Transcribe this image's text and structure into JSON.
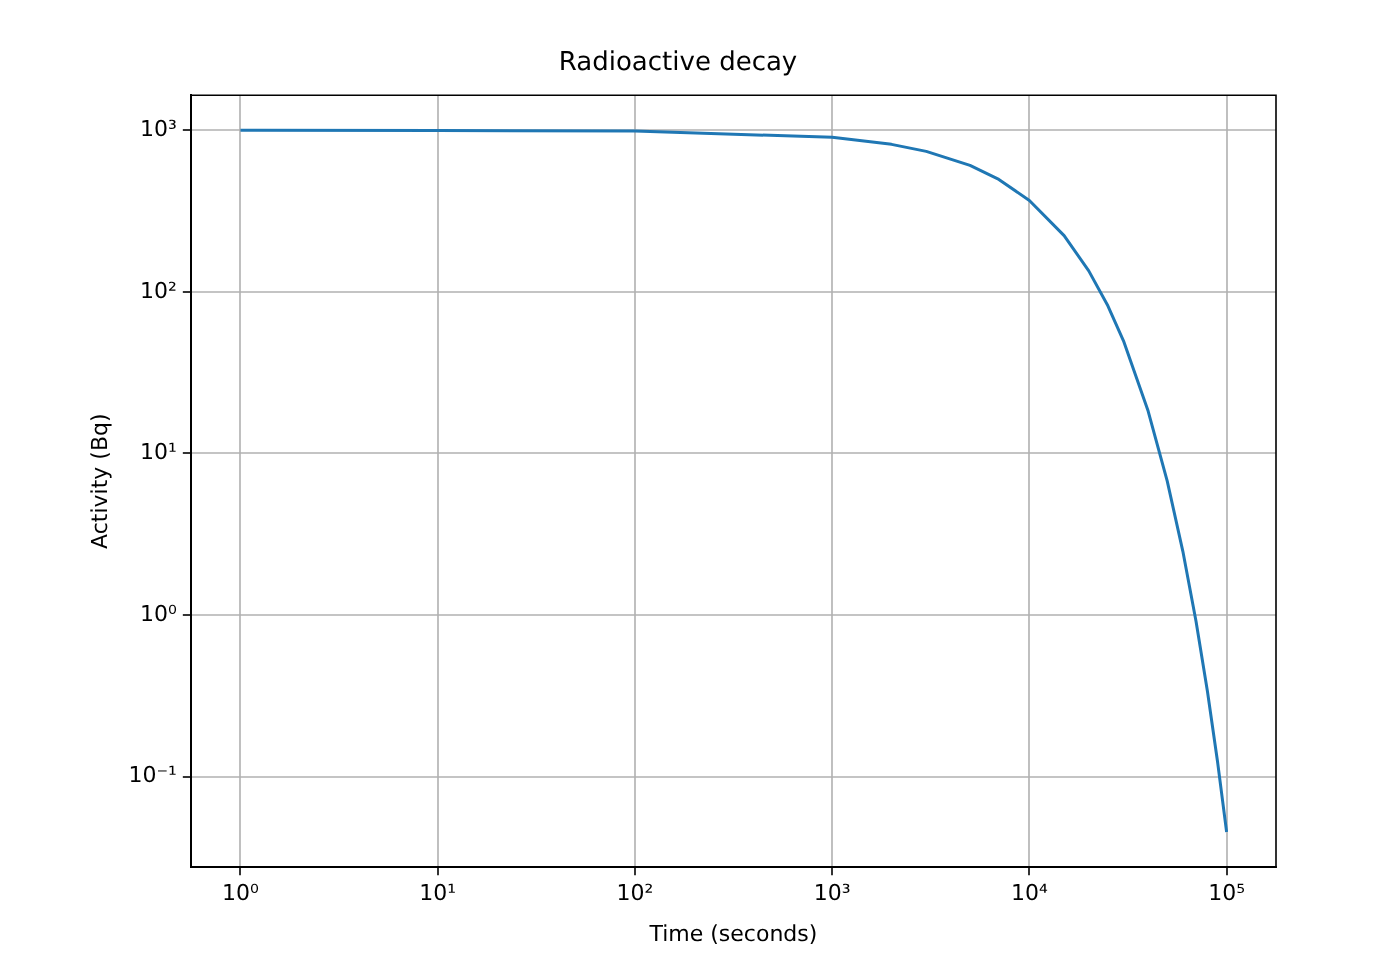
{
  "chart_data": {
    "type": "line",
    "title": "Radioactive decay",
    "xlabel": "Time (seconds)",
    "ylabel": "Activity (Bq)",
    "x": [
      1,
      10,
      100,
      1000,
      2000,
      3000,
      5000,
      7000,
      10000,
      15000,
      20000,
      25000,
      30000,
      40000,
      50000,
      60000,
      70000,
      80000,
      90000,
      100000
    ],
    "series": [
      {
        "color": "#1f77b4",
        "values": [
          999.9,
          999,
          990,
          905,
          819,
          741,
          607,
          497,
          368,
          223,
          135,
          82,
          49.8,
          18.3,
          6.74,
          2.48,
          0.912,
          0.335,
          0.123,
          0.0454
        ]
      }
    ],
    "log": "xy",
    "xlim": [
      0.56,
      178000
    ],
    "ylim": [
      0.0275,
      1650
    ],
    "xticks": [
      {
        "value": 1,
        "label": "10⁰"
      },
      {
        "value": 10,
        "label": "10¹"
      },
      {
        "value": 100,
        "label": "10²"
      },
      {
        "value": 1000,
        "label": "10³"
      },
      {
        "value": 10000,
        "label": "10⁴"
      },
      {
        "value": 100000,
        "label": "10⁵"
      }
    ],
    "yticks": [
      {
        "value": 0.1,
        "label": "10⁻¹"
      },
      {
        "value": 1,
        "label": "10⁰"
      },
      {
        "value": 10,
        "label": "10¹"
      },
      {
        "value": 100,
        "label": "10²"
      },
      {
        "value": 1000,
        "label": "10³"
      }
    ],
    "grid": true,
    "legend": false,
    "marker": "none",
    "line_style": "solid"
  }
}
